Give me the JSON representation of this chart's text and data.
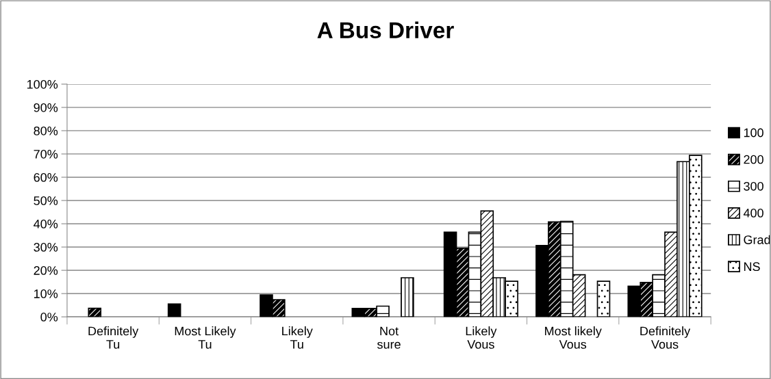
{
  "chart_data": {
    "type": "bar",
    "title": "A Bus Driver",
    "categories": [
      "Definitely\nTu",
      "Most Likely\nTu",
      "Likely\nTu",
      "Not\nsure",
      "Likely\nVous",
      "Most likely\nVous",
      "Definitely\nVous"
    ],
    "series": [
      {
        "name": "100",
        "color": "#000000",
        "values": [
          null,
          5.5,
          9.4,
          3.6,
          36.4,
          30.7,
          13.2
        ]
      },
      {
        "name": "200",
        "color": "#000000",
        "values": [
          3.7,
          null,
          7.4,
          3.6,
          29.5,
          40.8,
          14.8
        ]
      },
      {
        "name": "300",
        "color": "#000000",
        "values": [
          null,
          null,
          null,
          4.6,
          36.4,
          41.0,
          18.1
        ]
      },
      {
        "name": "400",
        "color": "#000000",
        "values": [
          null,
          null,
          null,
          null,
          45.5,
          18.1,
          36.4
        ]
      },
      {
        "name": "Grad",
        "color": "#000000",
        "values": [
          null,
          null,
          null,
          16.8,
          16.8,
          null,
          66.7
        ]
      },
      {
        "name": "NS",
        "color": "#000000",
        "values": [
          null,
          null,
          null,
          null,
          15.3,
          15.3,
          69.4
        ]
      }
    ],
    "ylim": [
      0,
      100
    ],
    "yticks": [
      {
        "value": 0,
        "label": "0%"
      },
      {
        "value": 10,
        "label": "10%"
      },
      {
        "value": 20,
        "label": "20%"
      },
      {
        "value": 30,
        "label": "30%"
      },
      {
        "value": 40,
        "label": "40%"
      },
      {
        "value": 50,
        "label": "50%"
      },
      {
        "value": 60,
        "label": "60%"
      },
      {
        "value": 70,
        "label": "70%"
      },
      {
        "value": 80,
        "label": "80%"
      },
      {
        "value": 90,
        "label": "90%"
      },
      {
        "value": 100,
        "label": "100%"
      }
    ],
    "grid": "y",
    "legend": "right"
  }
}
